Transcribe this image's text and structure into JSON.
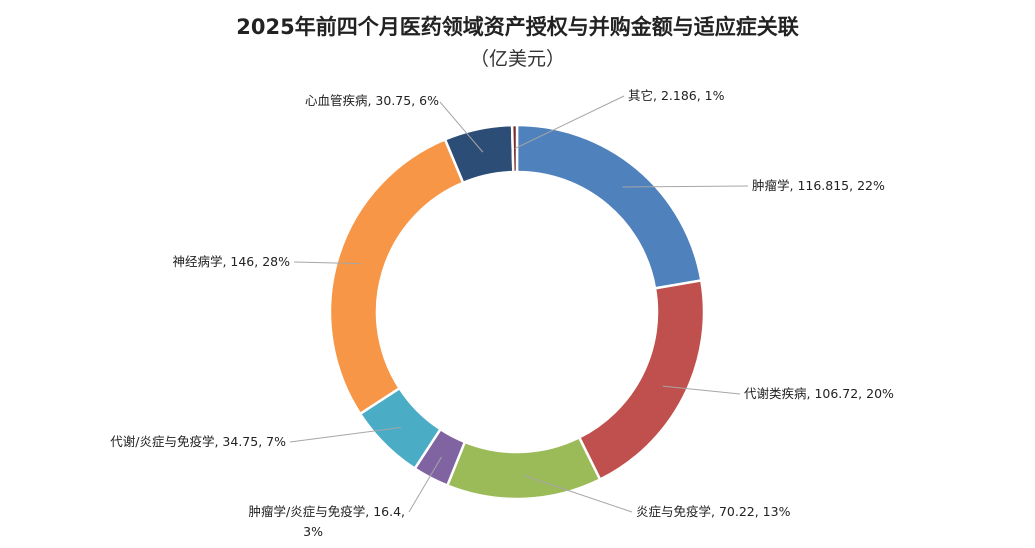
{
  "chart_data": {
    "type": "pie",
    "style": "donut",
    "title": "2025年前四个月医药领域资产授权与并购金额与适应症关联",
    "subtitle": "（亿美元）",
    "categories": [
      "肿瘤学",
      "代谢类疾病",
      "炎症与免疫学",
      "肿瘤学/炎症与免疫学",
      "代谢/炎症与免疫学",
      "神经病学",
      "心血管疾病",
      "其它"
    ],
    "values": [
      116.815,
      106.72,
      70.22,
      16.4,
      34.75,
      146,
      30.75,
      2.186
    ],
    "percent_labels": [
      "22%",
      "20%",
      "13%",
      "3%",
      "7%",
      "28%",
      "6%",
      "1%"
    ],
    "data_labels": [
      [
        "肿瘤学, 116.815, 22%"
      ],
      [
        "代谢类疾病, 106.72, 20%"
      ],
      [
        "炎症与免疫学, 70.22, 13%"
      ],
      [
        "肿瘤学/炎症与免疫学, 16.4,",
        "3%"
      ],
      [
        "代谢/炎症与免疫学, 34.75, 7%"
      ],
      [
        "神经病学, 146, 28%"
      ],
      [
        "心血管疾病, 30.75, 6%"
      ],
      [
        "其它, 2.186, 1%"
      ]
    ],
    "colors": [
      "#4f81bd",
      "#c0504d",
      "#9bbb59",
      "#8064a2",
      "#4bacc6",
      "#f79646",
      "#2c4d75",
      "#772c2a"
    ],
    "start_angle": "12 o'clock",
    "direction": "clockwise",
    "legend": "none"
  }
}
